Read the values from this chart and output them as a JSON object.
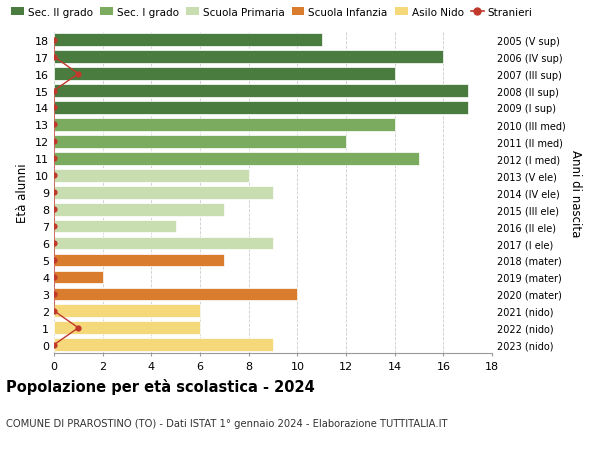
{
  "ages": [
    18,
    17,
    16,
    15,
    14,
    13,
    12,
    11,
    10,
    9,
    8,
    7,
    6,
    5,
    4,
    3,
    2,
    1,
    0
  ],
  "years": [
    "2005 (V sup)",
    "2006 (IV sup)",
    "2007 (III sup)",
    "2008 (II sup)",
    "2009 (I sup)",
    "2010 (III med)",
    "2011 (II med)",
    "2012 (I med)",
    "2013 (V ele)",
    "2014 (IV ele)",
    "2015 (III ele)",
    "2016 (II ele)",
    "2017 (I ele)",
    "2018 (mater)",
    "2019 (mater)",
    "2020 (mater)",
    "2021 (nido)",
    "2022 (nido)",
    "2023 (nido)"
  ],
  "values": [
    11,
    16,
    14,
    17,
    17,
    14,
    12,
    15,
    8,
    9,
    7,
    5,
    9,
    7,
    2,
    10,
    6,
    6,
    9
  ],
  "bar_colors": [
    "#4a7c3f",
    "#4a7c3f",
    "#4a7c3f",
    "#4a7c3f",
    "#4a7c3f",
    "#7aab5e",
    "#7aab5e",
    "#7aab5e",
    "#c8ddb0",
    "#c8ddb0",
    "#c8ddb0",
    "#c8ddb0",
    "#c8ddb0",
    "#d97c2e",
    "#d97c2e",
    "#d97c2e",
    "#f5d87a",
    "#f5d87a",
    "#f5d87a"
  ],
  "legend_labels": [
    "Sec. II grado",
    "Sec. I grado",
    "Scuola Primaria",
    "Scuola Infanzia",
    "Asilo Nido",
    "Stranieri"
  ],
  "legend_colors": [
    "#4a7c3f",
    "#7aab5e",
    "#c8ddb0",
    "#d97c2e",
    "#f5d87a",
    "#c0392b"
  ],
  "title": "Popolazione per età scolastica - 2024",
  "subtitle": "COMUNE DI PRAROSTINO (TO) - Dati ISTAT 1° gennaio 2024 - Elaborazione TUTTITALIA.IT",
  "ylabel": "Età alunni",
  "ylabel_right": "Anni di nascita",
  "xlim": [
    0,
    18
  ],
  "xticks": [
    0,
    2,
    4,
    6,
    8,
    10,
    12,
    14,
    16,
    18
  ],
  "bg_color": "#ffffff",
  "grid_color": "#cccccc",
  "stranieri_color": "#c0392b",
  "stranieri_values": [
    0,
    0,
    1,
    0,
    0,
    0,
    0,
    0,
    0,
    0,
    0,
    0,
    0,
    0,
    0,
    0,
    0,
    1,
    0
  ]
}
